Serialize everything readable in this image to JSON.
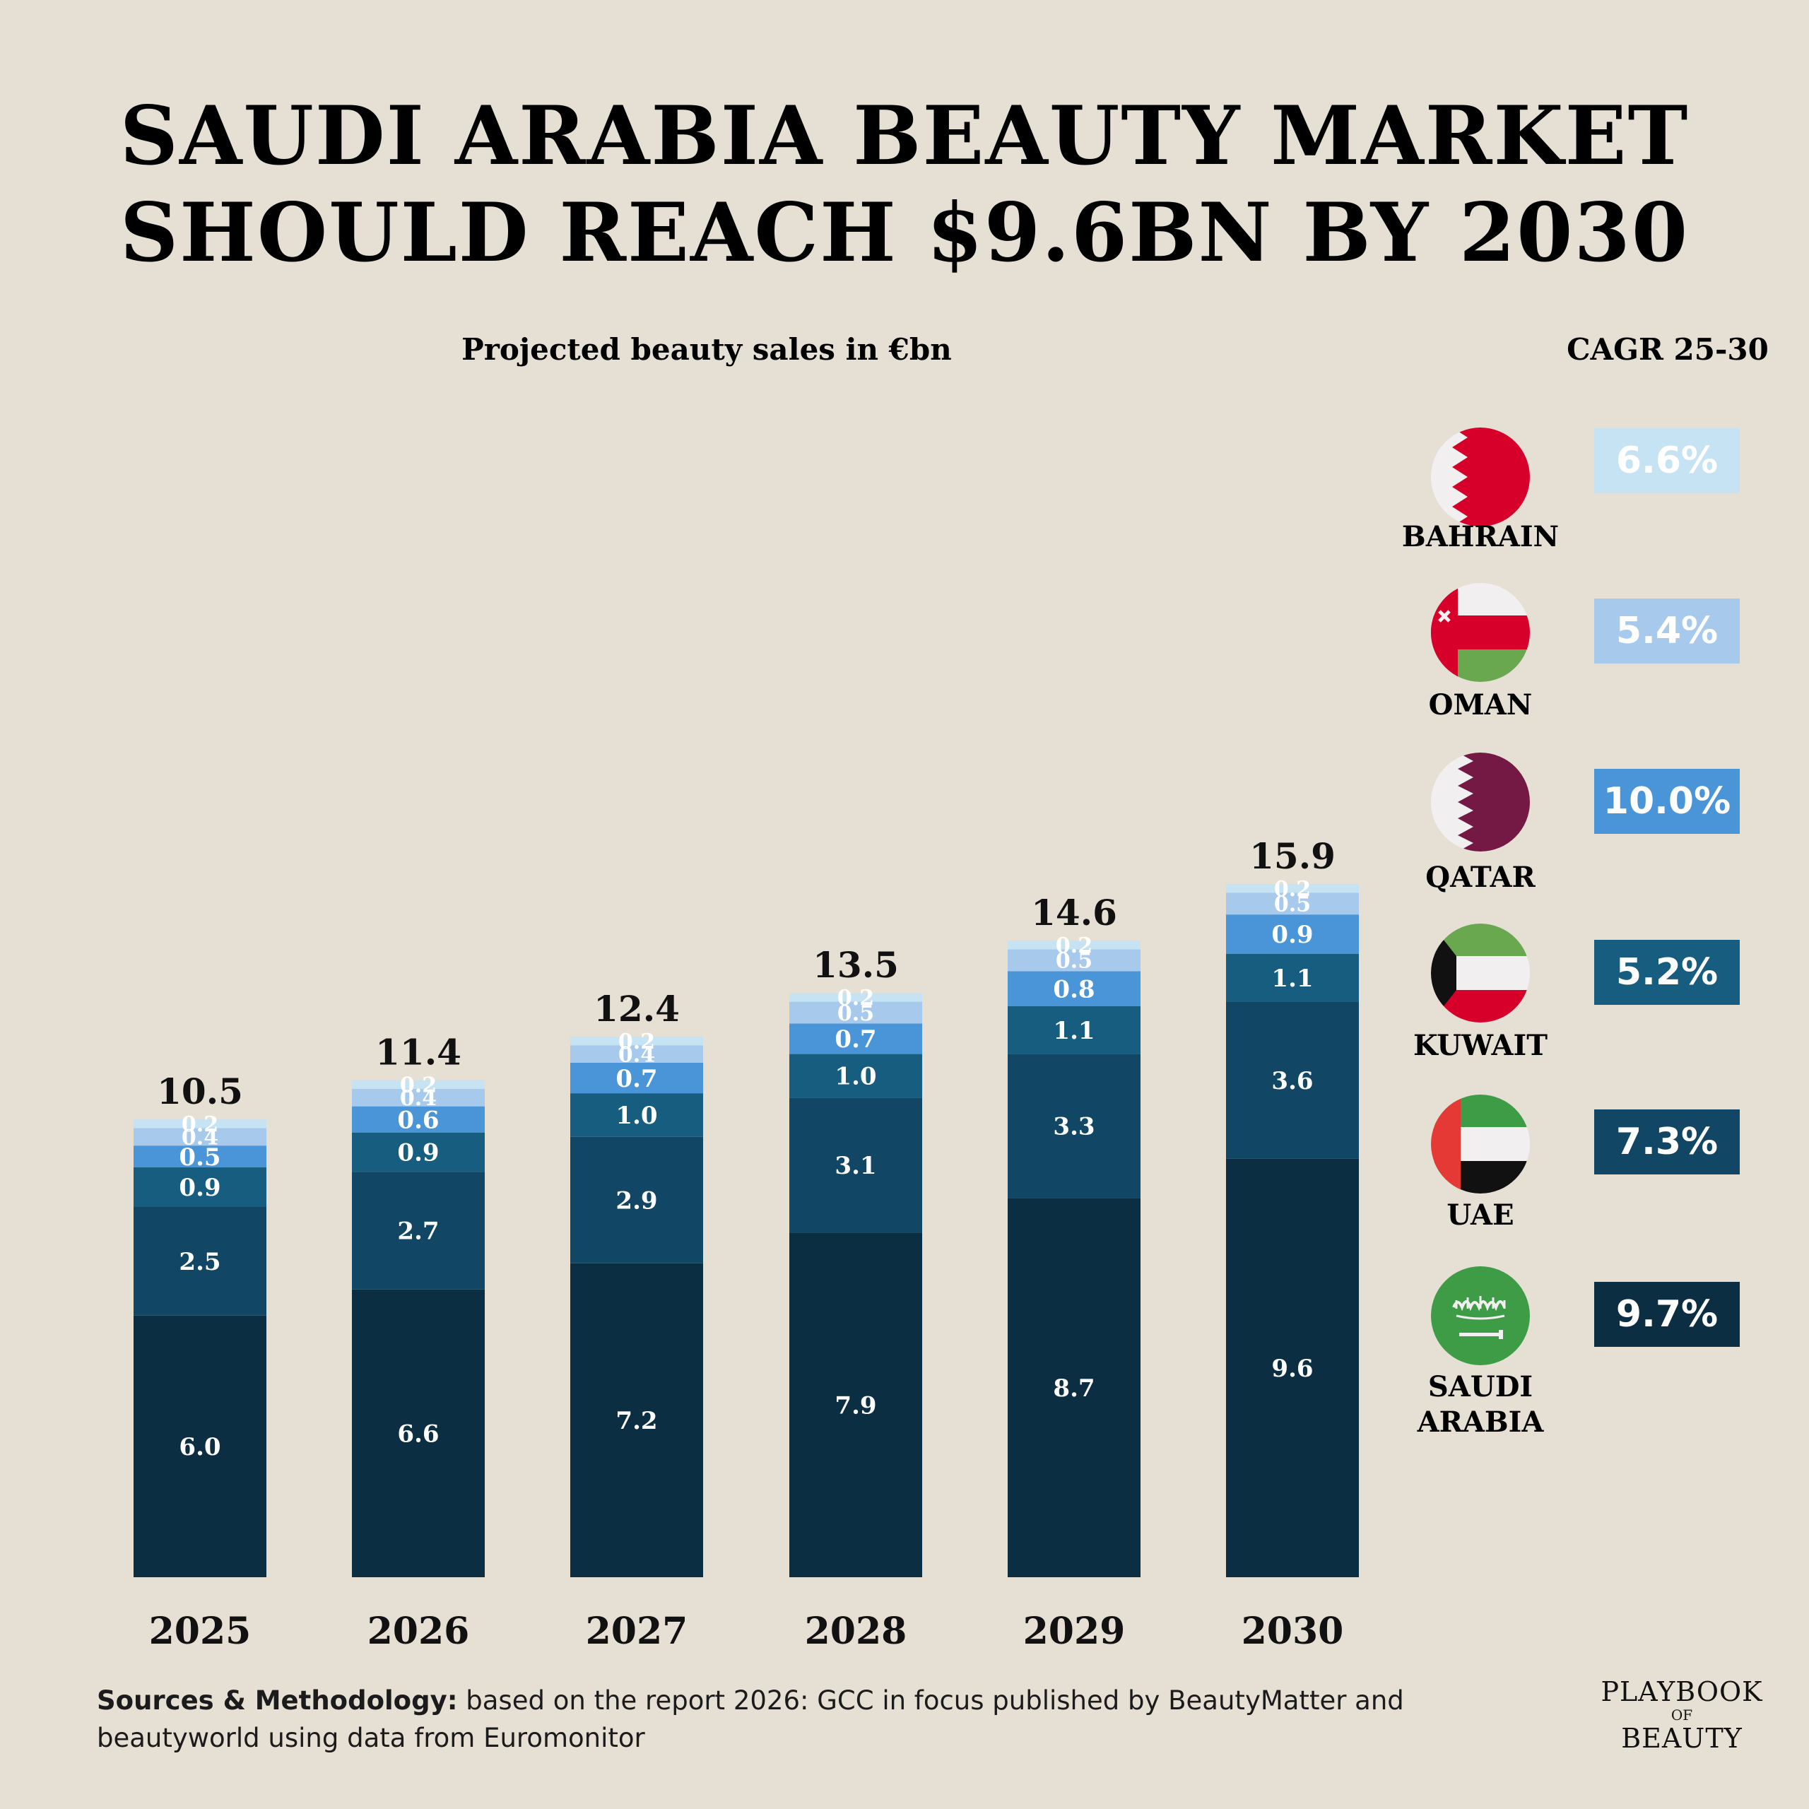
{
  "title_line1": "SAUDI ARABIA BEAUTY MARKET",
  "title_line2": "SHOULD REACH $9.6BN BY 2030",
  "subtitle": "Projected beauty sales in €bn",
  "cagr_header": "CAGR 25-30",
  "chart_data": {
    "type": "bar",
    "stacked": true,
    "categories": [
      "2025",
      "2026",
      "2027",
      "2028",
      "2029",
      "2030"
    ],
    "totals": [
      "10.5",
      "11.4",
      "12.4",
      "13.5",
      "14.6",
      "15.9"
    ],
    "series": [
      {
        "name": "SAUDI ARABIA",
        "color": "#0b2e42",
        "values": [
          6.0,
          6.6,
          7.2,
          7.9,
          8.7,
          9.6
        ]
      },
      {
        "name": "UAE",
        "color": "#114764",
        "values": [
          2.5,
          2.7,
          2.9,
          3.1,
          3.3,
          3.6
        ]
      },
      {
        "name": "KUWAIT",
        "color": "#165d7f",
        "values": [
          0.9,
          0.9,
          1.0,
          1.0,
          1.1,
          1.1
        ]
      },
      {
        "name": "QATAR",
        "color": "#4a94d8",
        "values": [
          0.5,
          0.6,
          0.7,
          0.7,
          0.8,
          0.9
        ]
      },
      {
        "name": "OMAN",
        "color": "#a6c9ec",
        "values": [
          0.4,
          0.4,
          0.4,
          0.5,
          0.5,
          0.5
        ]
      },
      {
        "name": "BAHRAIN",
        "color": "#c6e3f3",
        "values": [
          0.2,
          0.2,
          0.2,
          0.2,
          0.2,
          0.2
        ]
      }
    ]
  },
  "legend": [
    {
      "name_lines": [
        "BAHRAIN"
      ],
      "cagr": "6.6%",
      "color": "#c6e3f3",
      "flag": "bahrain-flag-icon"
    },
    {
      "name_lines": [
        "OMAN"
      ],
      "cagr": "5.4%",
      "color": "#a6c9ec",
      "flag": "oman-flag-icon"
    },
    {
      "name_lines": [
        "QATAR"
      ],
      "cagr": "10.0%",
      "color": "#4a94d8",
      "flag": "qatar-flag-icon"
    },
    {
      "name_lines": [
        "KUWAIT"
      ],
      "cagr": "5.2%",
      "color": "#165d7f",
      "flag": "kuwait-flag-icon"
    },
    {
      "name_lines": [
        "UAE"
      ],
      "cagr": "7.3%",
      "color": "#114764",
      "flag": "uae-flag-icon"
    },
    {
      "name_lines": [
        "SAUDI",
        "ARABIA"
      ],
      "cagr": "9.7%",
      "color": "#0b2e42",
      "flag": "saudi-arabia-flag-icon"
    }
  ],
  "sources_label": "Sources & Methodology:",
  "sources_text": " based on the report 2026: GCC in focus published by BeautyMatter and beautyworld using data from Euromonitor",
  "logo": {
    "line1": "PLAYBOOK",
    "line2": "OF",
    "line3": "BEAUTY"
  }
}
